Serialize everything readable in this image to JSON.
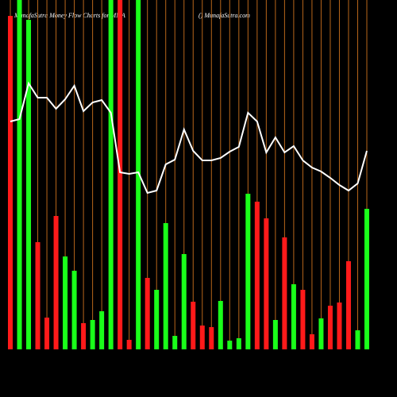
{
  "chart_data": {
    "type": "bar",
    "title": "MunafaSutra  Money Flow  Charts for MMA",
    "source": "() MunafaSutra.com",
    "categories": [
      null,
      null,
      null,
      null,
      null,
      null,
      null,
      null,
      null,
      null,
      null,
      null,
      null,
      null,
      null,
      null,
      null,
      null,
      null,
      null,
      null,
      null,
      null,
      null,
      null,
      null,
      null,
      null,
      null,
      null,
      null,
      null,
      null,
      null,
      null,
      null,
      null,
      null,
      null,
      null
    ],
    "values": [
      420,
      440,
      415,
      135,
      40,
      168,
      117,
      99,
      33,
      37,
      48,
      440,
      440,
      12,
      440,
      90,
      75,
      159,
      17,
      120,
      60,
      30,
      28,
      61,
      11,
      14,
      196,
      186,
      165,
      37,
      141,
      82,
      75,
      19,
      39,
      55,
      59,
      111,
      24,
      177
    ],
    "colors": [
      "#ff1a1a",
      "#1aff1a",
      "#1aff1a",
      "#ff1a1a",
      "#ff1a1a",
      "#ff1a1a",
      "#1aff1a",
      "#1aff1a",
      "#ff1a1a",
      "#1aff1a",
      "#1aff1a",
      "#1aff1a",
      "#ff1a1a",
      "#ff1a1a",
      "#1aff1a",
      "#ff1a1a",
      "#1aff1a",
      "#1aff1a",
      "#1aff1a",
      "#1aff1a",
      "#ff1a1a",
      "#ff1a1a",
      "#ff1a1a",
      "#1aff1a",
      "#1aff1a",
      "#1aff1a",
      "#1aff1a",
      "#ff1a1a",
      "#ff1a1a",
      "#1aff1a",
      "#ff1a1a",
      "#1aff1a",
      "#ff1a1a",
      "#ff1a1a",
      "#1aff1a",
      "#ff1a1a",
      "#ff1a1a",
      "#ff1a1a",
      "#1aff1a",
      "#1aff1a"
    ],
    "line": {
      "color": "#ffffff",
      "values": [
        287,
        290,
        335,
        317,
        317,
        303,
        315,
        332,
        300,
        311,
        314,
        298,
        223,
        221,
        223,
        197,
        200,
        233,
        239,
        277,
        250,
        238,
        238,
        241,
        249,
        255,
        298,
        287,
        248,
        267,
        248,
        256,
        238,
        229,
        224,
        216,
        207,
        200,
        209,
        250
      ]
    },
    "ylim": [
      0,
      440
    ],
    "grid": true,
    "grid_color": "#b8661a"
  }
}
